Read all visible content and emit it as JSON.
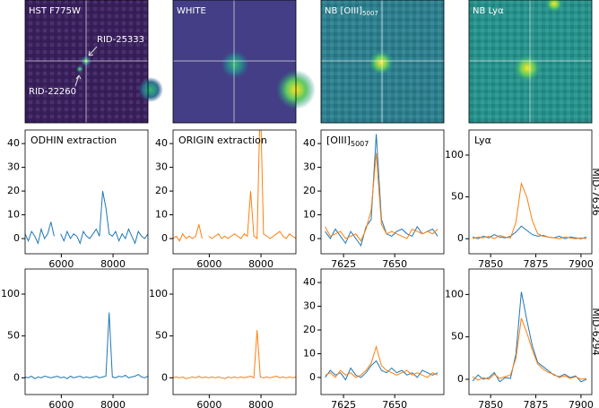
{
  "chart_data": [
    {
      "type": "image",
      "title": "HST F775W",
      "annotations": [
        "RID-25333",
        "RID-22260"
      ]
    },
    {
      "type": "image",
      "title": "WHITE"
    },
    {
      "type": "image",
      "title": "NB [OIII]",
      "title_sub": "5007"
    },
    {
      "type": "image",
      "title": "NB Lyα"
    },
    {
      "type": "line",
      "label": "ODHIN extraction",
      "x": [
        4600,
        4725,
        4850,
        4975,
        5100,
        5225,
        5350,
        5475,
        5600,
        5725,
        5850,
        5975,
        6100,
        6225,
        6350,
        6475,
        6600,
        6725,
        6850,
        6975,
        7100,
        7225,
        7350,
        7475,
        7600,
        7725,
        7850,
        7975,
        8100,
        8225,
        8350,
        8475,
        8600,
        8725,
        8850,
        8975,
        9100,
        9225,
        9350
      ],
      "xlim": [
        4600,
        9350
      ],
      "xticks": [
        6000,
        8000
      ],
      "ylim": [
        -6.4,
        45.7
      ],
      "yticks": [
        0,
        10,
        20,
        30,
        40
      ],
      "series": [
        {
          "color": "#1f77b4",
          "values": [
            2,
            -1,
            3,
            1,
            -2,
            4,
            0,
            2,
            7,
            1,
            null,
            2,
            -1,
            3,
            0,
            2,
            1,
            -2,
            3,
            1,
            0,
            2,
            4,
            1,
            20,
            13,
            2,
            1,
            3,
            -1,
            2,
            0,
            4,
            1,
            -2,
            3,
            1,
            0,
            2
          ]
        }
      ]
    },
    {
      "type": "line",
      "label": "ORIGIN extraction",
      "x": [
        4600,
        4725,
        4850,
        4975,
        5100,
        5225,
        5350,
        5475,
        5600,
        5725,
        5850,
        5975,
        6100,
        6225,
        6350,
        6475,
        6600,
        6725,
        6850,
        6975,
        7100,
        7225,
        7350,
        7475,
        7600,
        7725,
        7850,
        7975,
        8100,
        8225,
        8350,
        8475,
        8600,
        8725,
        8850,
        8975,
        9100,
        9225,
        9350
      ],
      "xlim": [
        4600,
        9350
      ],
      "xticks": [
        6000,
        8000
      ],
      "ylim": [
        -6.4,
        45.7
      ],
      "yticks": [
        0,
        10,
        20,
        30,
        40
      ],
      "series": [
        {
          "color": "#ff7f0e",
          "values": [
            0,
            1,
            -1,
            2,
            0,
            1,
            0,
            1,
            6,
            0,
            null,
            1,
            0,
            1,
            2,
            0,
            1,
            0,
            1,
            2,
            1,
            0,
            2,
            1,
            20,
            1,
            0,
            60,
            2,
            1,
            0,
            1,
            2,
            3,
            1,
            0,
            2,
            1,
            0
          ]
        }
      ]
    },
    {
      "type": "line",
      "label": "[OIII]",
      "label_sub": "5007",
      "x": [
        7616,
        7618.5,
        7621,
        7623.5,
        7626,
        7628.5,
        7631,
        7633.5,
        7636,
        7638.5,
        7641,
        7643.5,
        7646,
        7648.5,
        7651,
        7653.5,
        7656,
        7658.5,
        7661,
        7663.5,
        7666,
        7668.5,
        7671
      ],
      "xlim": [
        7614,
        7674
      ],
      "xticks": [
        7625,
        7650
      ],
      "ylim": [
        -6.4,
        45.7
      ],
      "yticks": [
        0,
        10,
        20,
        30,
        40
      ],
      "series": [
        {
          "color": "#1f77b4",
          "values": [
            3,
            0,
            4,
            1,
            -2,
            3,
            0,
            -3,
            5,
            8,
            44,
            8,
            2,
            1,
            3,
            4,
            2,
            1,
            5,
            2,
            3,
            4,
            1
          ]
        },
        {
          "color": "#ff7f0e",
          "values": [
            5,
            1,
            2,
            3,
            0,
            1,
            2,
            -1,
            4,
            12,
            36,
            6,
            2,
            3,
            2,
            1,
            0,
            4,
            3,
            2,
            3,
            2,
            4
          ]
        }
      ]
    },
    {
      "type": "line",
      "label": "Lyα",
      "row_label": "MID-7636",
      "x": [
        7840,
        7843,
        7846,
        7849,
        7852,
        7855,
        7858,
        7861,
        7864,
        7867,
        7870,
        7873,
        7876,
        7879,
        7882,
        7885,
        7888,
        7891,
        7894,
        7897,
        7900,
        7903
      ],
      "xlim": [
        7838,
        7906
      ],
      "xticks": [
        7850,
        7875,
        7900
      ],
      "ylim": [
        -18,
        130
      ],
      "yticks": [
        0,
        50,
        100
      ],
      "series": [
        {
          "color": "#1f77b4",
          "values": [
            2,
            0,
            3,
            1,
            5,
            2,
            1,
            3,
            8,
            15,
            10,
            5,
            3,
            4,
            2,
            1,
            3,
            0,
            2,
            1,
            0,
            2
          ]
        },
        {
          "color": "#ff7f0e",
          "values": [
            0,
            2,
            1,
            3,
            0,
            4,
            2,
            1,
            20,
            66,
            50,
            22,
            6,
            3,
            2,
            1,
            0,
            2,
            1,
            0,
            1,
            0
          ]
        }
      ]
    },
    {
      "type": "line",
      "x": [
        4600,
        4725,
        4850,
        4975,
        5100,
        5225,
        5350,
        5475,
        5600,
        5725,
        5850,
        5975,
        6100,
        6225,
        6350,
        6475,
        6600,
        6725,
        6850,
        6975,
        7100,
        7225,
        7350,
        7475,
        7600,
        7725,
        7850,
        7975,
        8100,
        8225,
        8350,
        8475,
        8600,
        8725,
        8850,
        8975,
        9100,
        9225,
        9350
      ],
      "xlim": [
        4600,
        9350
      ],
      "xticks": [
        6000,
        8000
      ],
      "ylim": [
        -20,
        130
      ],
      "yticks": [
        0,
        50,
        100
      ],
      "series": [
        {
          "color": "#1f77b4",
          "values": [
            1,
            0,
            2,
            -1,
            1,
            0,
            2,
            1,
            0,
            1,
            2,
            0,
            1,
            -1,
            2,
            0,
            1,
            2,
            0,
            1,
            0,
            1,
            2,
            0,
            1,
            2,
            78,
            1,
            0,
            2,
            1,
            3,
            0,
            1,
            2,
            4,
            1,
            0,
            2
          ]
        }
      ]
    },
    {
      "type": "line",
      "x": [
        4600,
        4725,
        4850,
        4975,
        5100,
        5225,
        5350,
        5475,
        5600,
        5725,
        5850,
        5975,
        6100,
        6225,
        6350,
        6475,
        6600,
        6725,
        6850,
        6975,
        7100,
        7225,
        7350,
        7475,
        7600,
        7725,
        7850,
        7975,
        8100,
        8225,
        8350,
        8475,
        8600,
        8725,
        8850,
        8975,
        9100,
        9225,
        9350
      ],
      "xlim": [
        4600,
        9350
      ],
      "xticks": [
        6000,
        8000
      ],
      "ylim": [
        -20,
        130
      ],
      "yticks": [
        0,
        50,
        100
      ],
      "series": [
        {
          "color": "#ff7f0e",
          "values": [
            0,
            1,
            0,
            1,
            -1,
            0,
            1,
            0,
            2,
            0,
            1,
            0,
            1,
            0,
            1,
            0,
            -1,
            1,
            0,
            1,
            0,
            1,
            0,
            1,
            2,
            0,
            57,
            1,
            0,
            1,
            0,
            1,
            2,
            0,
            1,
            0,
            1,
            0,
            1
          ]
        }
      ]
    },
    {
      "type": "line",
      "x": [
        7616,
        7618.5,
        7621,
        7623.5,
        7626,
        7628.5,
        7631,
        7633.5,
        7636,
        7638.5,
        7641,
        7643.5,
        7646,
        7648.5,
        7651,
        7653.5,
        7656,
        7658.5,
        7661,
        7663.5,
        7666,
        7668.5,
        7671
      ],
      "xlim": [
        7614,
        7674
      ],
      "xticks": [
        7625,
        7650
      ],
      "ylim": [
        -7.2,
        45.7
      ],
      "yticks": [
        0,
        10,
        20,
        30,
        40
      ],
      "series": [
        {
          "color": "#1f77b4",
          "values": [
            0,
            3,
            1,
            2,
            -1,
            4,
            1,
            0,
            2,
            5,
            7,
            3,
            2,
            4,
            2,
            3,
            1,
            2,
            0,
            3,
            2,
            1,
            2
          ]
        },
        {
          "color": "#ff7f0e",
          "values": [
            1,
            2,
            0,
            3,
            1,
            2,
            0,
            1,
            3,
            6,
            13,
            5,
            3,
            2,
            1,
            2,
            3,
            1,
            2,
            1,
            0,
            2,
            1
          ]
        }
      ]
    },
    {
      "type": "line",
      "row_label": "MID-6294",
      "x": [
        7840,
        7843,
        7846,
        7849,
        7852,
        7855,
        7858,
        7861,
        7864,
        7867,
        7870,
        7873,
        7876,
        7879,
        7882,
        7885,
        7888,
        7891,
        7894,
        7897,
        7900,
        7903
      ],
      "xlim": [
        7838,
        7906
      ],
      "xticks": [
        7850,
        7875,
        7900
      ],
      "ylim": [
        -18,
        130
      ],
      "yticks": [
        0,
        50,
        100
      ],
      "series": [
        {
          "color": "#1f77b4",
          "values": [
            -2,
            5,
            0,
            2,
            8,
            -3,
            2,
            1,
            30,
            103,
            70,
            40,
            20,
            15,
            10,
            5,
            3,
            6,
            2,
            4,
            -3,
            0
          ]
        },
        {
          "color": "#ff7f0e",
          "values": [
            3,
            -1,
            2,
            0,
            6,
            1,
            3,
            5,
            25,
            72,
            55,
            35,
            18,
            12,
            8,
            6,
            2,
            4,
            1,
            3,
            0,
            1
          ]
        }
      ]
    }
  ]
}
